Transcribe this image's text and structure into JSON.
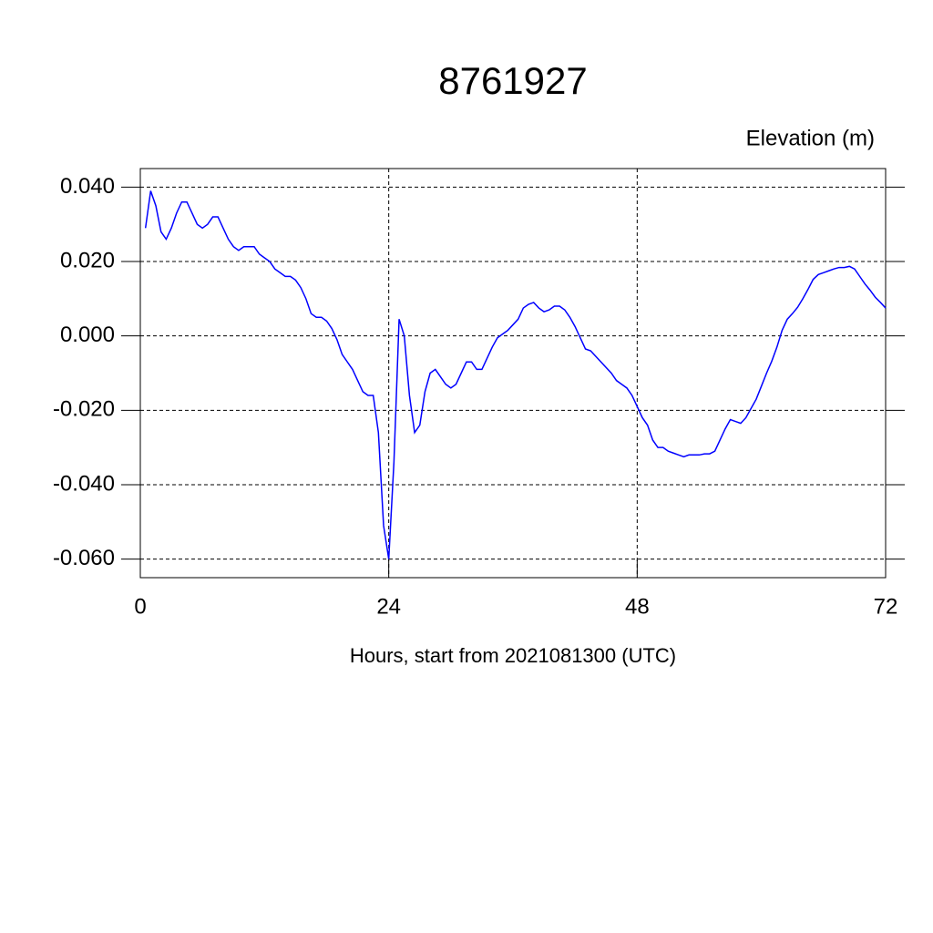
{
  "chart_data": {
    "type": "line",
    "title": "8761927",
    "y_label": "Elevation (m)",
    "x_label": "Hours, start from 2021081300 (UTC)",
    "x": [
      0.5,
      1,
      1.5,
      2,
      2.5,
      3,
      3.5,
      4,
      4.5,
      5,
      5.5,
      6,
      6.5,
      7,
      7.5,
      8,
      8.5,
      9,
      9.5,
      10,
      10.5,
      11,
      11.5,
      12,
      12.5,
      13,
      13.5,
      14,
      14.5,
      15,
      15.5,
      16,
      16.5,
      17,
      17.5,
      18,
      18.5,
      19,
      19.5,
      20,
      20.5,
      21,
      21.5,
      22,
      22.5,
      23,
      23.5,
      24,
      24.5,
      25,
      25.5,
      26,
      26.5,
      27,
      27.5,
      28,
      28.5,
      29,
      29.5,
      30,
      30.5,
      31,
      31.5,
      32,
      32.5,
      33,
      33.5,
      34,
      34.5,
      35,
      35.5,
      36,
      36.5,
      37,
      37.5,
      38,
      38.5,
      39,
      39.5,
      40,
      40.5,
      41,
      41.5,
      42,
      42.5,
      43,
      43.5,
      44,
      44.5,
      45,
      45.5,
      46,
      46.5,
      47,
      47.5,
      48,
      48.5,
      49,
      49.5,
      50,
      50.5,
      51,
      51.5,
      52,
      52.5,
      53,
      53.5,
      54,
      54.5,
      55,
      55.5,
      56,
      56.5,
      57,
      57.5,
      58,
      58.5,
      59,
      59.5,
      60,
      60.5,
      61,
      61.5,
      62,
      62.5,
      63,
      63.5,
      64,
      64.5,
      65,
      65.5,
      66,
      66.5,
      67,
      67.5,
      68,
      68.5,
      69,
      69.5,
      70,
      70.5,
      71,
      71.5,
      72
    ],
    "series": [
      {
        "name": "Elevation",
        "color": "#0000ff",
        "values": [
          0.029,
          0.039,
          0.035,
          0.028,
          0.026,
          0.029,
          0.033,
          0.036,
          0.036,
          0.033,
          0.03,
          0.029,
          0.03,
          0.032,
          0.032,
          0.029,
          0.026,
          0.024,
          0.023,
          0.024,
          0.024,
          0.024,
          0.022,
          0.021,
          0.02,
          0.018,
          0.017,
          0.016,
          0.016,
          0.015,
          0.013,
          0.01,
          0.006,
          0.005,
          0.005,
          0.004,
          0.002,
          -0.001,
          -0.005,
          -0.007,
          -0.009,
          -0.012,
          -0.015,
          -0.016,
          -0.016,
          -0.026,
          -0.051,
          -0.06,
          -0.034,
          0.0045,
          0.0,
          -0.016,
          -0.026,
          -0.024,
          -0.015,
          -0.01,
          -0.009,
          -0.011,
          -0.013,
          -0.014,
          -0.013,
          -0.01,
          -0.007,
          -0.007,
          -0.009,
          -0.009,
          -0.006,
          -0.003,
          -0.0005,
          0.0005,
          0.0015,
          0.003,
          0.0045,
          0.0075,
          0.0085,
          0.009,
          0.0075,
          0.0065,
          0.007,
          0.008,
          0.008,
          0.007,
          0.005,
          0.0025,
          -0.0005,
          -0.0035,
          -0.004,
          -0.0055,
          -0.007,
          -0.0085,
          -0.01,
          -0.012,
          -0.013,
          -0.014,
          -0.016,
          -0.019,
          -0.022,
          -0.024,
          -0.028,
          -0.03,
          -0.03,
          -0.031,
          -0.0315,
          -0.032,
          -0.0325,
          -0.032,
          -0.032,
          -0.032,
          -0.0317,
          -0.0317,
          -0.031,
          -0.028,
          -0.025,
          -0.0225,
          -0.023,
          -0.0235,
          -0.022,
          -0.0195,
          -0.017,
          -0.0135,
          -0.01,
          -0.0068,
          -0.003,
          0.0015,
          0.0045,
          0.006,
          0.0077,
          0.01,
          0.0125,
          0.0152,
          0.0165,
          0.017,
          0.0175,
          0.018,
          0.0184,
          0.0184,
          0.0187,
          0.018,
          0.016,
          0.014,
          0.0123,
          0.0104,
          0.009,
          0.0075
        ]
      }
    ],
    "xlim": [
      0,
      72
    ],
    "xticks": [
      0,
      24,
      48,
      72
    ],
    "ylim": [
      -0.065,
      0.045
    ],
    "yticks": [
      {
        "value": -0.06,
        "label": "-0.060"
      },
      {
        "value": -0.04,
        "label": "-0.040"
      },
      {
        "value": -0.02,
        "label": "-0.020"
      },
      {
        "value": 0,
        "label": "0.000"
      },
      {
        "value": 0.02,
        "label": "0.020"
      },
      {
        "value": 0.04,
        "label": "0.040"
      }
    ],
    "grid": true
  }
}
